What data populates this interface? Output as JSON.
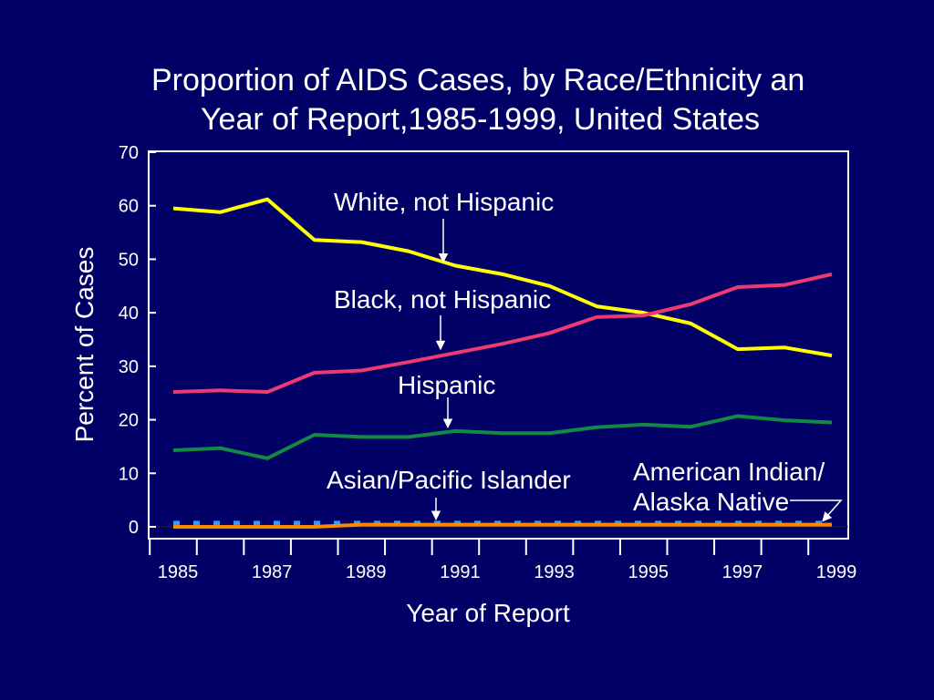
{
  "chart_data": {
    "type": "line",
    "title": "Proportion of AIDS Cases, by Race/Ethnicity and Year of Report,1985-1999, United States",
    "title_lines": [
      "Proportion of AIDS Cases, by Race/Ethnicity an",
      "Year of Report,1985-1999, United States"
    ],
    "xlabel": "Year of Report",
    "ylabel": "Percent of Cases",
    "ylim": [
      0,
      70
    ],
    "yticks": [
      0,
      10,
      20,
      30,
      40,
      50,
      60,
      70
    ],
    "xlim": [
      1985,
      1999
    ],
    "xtick_labels": [
      1985,
      1987,
      1989,
      1991,
      1993,
      1995,
      1997,
      1999
    ],
    "grid": false,
    "legend": "inline labels with arrows",
    "x": [
      1985,
      1986,
      1987,
      1988,
      1989,
      1990,
      1991,
      1992,
      1993,
      1994,
      1995,
      1996,
      1997,
      1998,
      1999
    ],
    "series": [
      {
        "name": "White, not Hispanic",
        "color": "#ffff00",
        "style": "solid",
        "values": [
          59.5,
          58.8,
          61.2,
          53.6,
          53.2,
          51.5,
          48.8,
          47.2,
          45.0,
          41.2,
          40.0,
          38.0,
          33.2,
          33.5,
          32.0
        ]
      },
      {
        "name": "Black, not Hispanic",
        "color": "#ee3a72",
        "style": "solid",
        "values": [
          25.2,
          25.5,
          25.2,
          28.8,
          29.2,
          30.8,
          32.5,
          34.2,
          36.2,
          39.2,
          39.5,
          41.6,
          44.8,
          45.2,
          47.2
        ]
      },
      {
        "name": "Hispanic",
        "color": "#128a44",
        "style": "solid",
        "values": [
          14.3,
          14.7,
          12.8,
          17.2,
          16.8,
          16.8,
          17.9,
          17.5,
          17.5,
          18.6,
          19.1,
          18.7,
          20.7,
          19.9,
          19.5
        ]
      },
      {
        "name": "Asian/Pacific Islander",
        "color": "#3399ff",
        "style": "dashed",
        "values": [
          0.7,
          0.7,
          0.7,
          0.7,
          0.7,
          0.7,
          0.7,
          0.7,
          0.7,
          0.7,
          0.7,
          0.7,
          0.7,
          0.7,
          0.7
        ]
      },
      {
        "name": "American Indian/ Alaska Native",
        "color": "#ff8800",
        "style": "solid",
        "values": [
          0.0,
          0.0,
          0.0,
          0.0,
          0.4,
          0.4,
          0.4,
          0.4,
          0.4,
          0.4,
          0.4,
          0.4,
          0.4,
          0.4,
          0.4
        ]
      }
    ],
    "annotations": [
      {
        "text": "White, not Hispanic",
        "series": 0,
        "x": 1991
      },
      {
        "text": "Black, not Hispanic",
        "series": 1,
        "x": 1991
      },
      {
        "text": "Hispanic",
        "series": 2,
        "x": 1991
      },
      {
        "text": "Asian/Pacific Islander",
        "series": 3,
        "x": 1991
      },
      {
        "text_lines": [
          "American Indian/",
          "Alaska Native"
        ],
        "series": 4,
        "x": 1999
      }
    ]
  }
}
